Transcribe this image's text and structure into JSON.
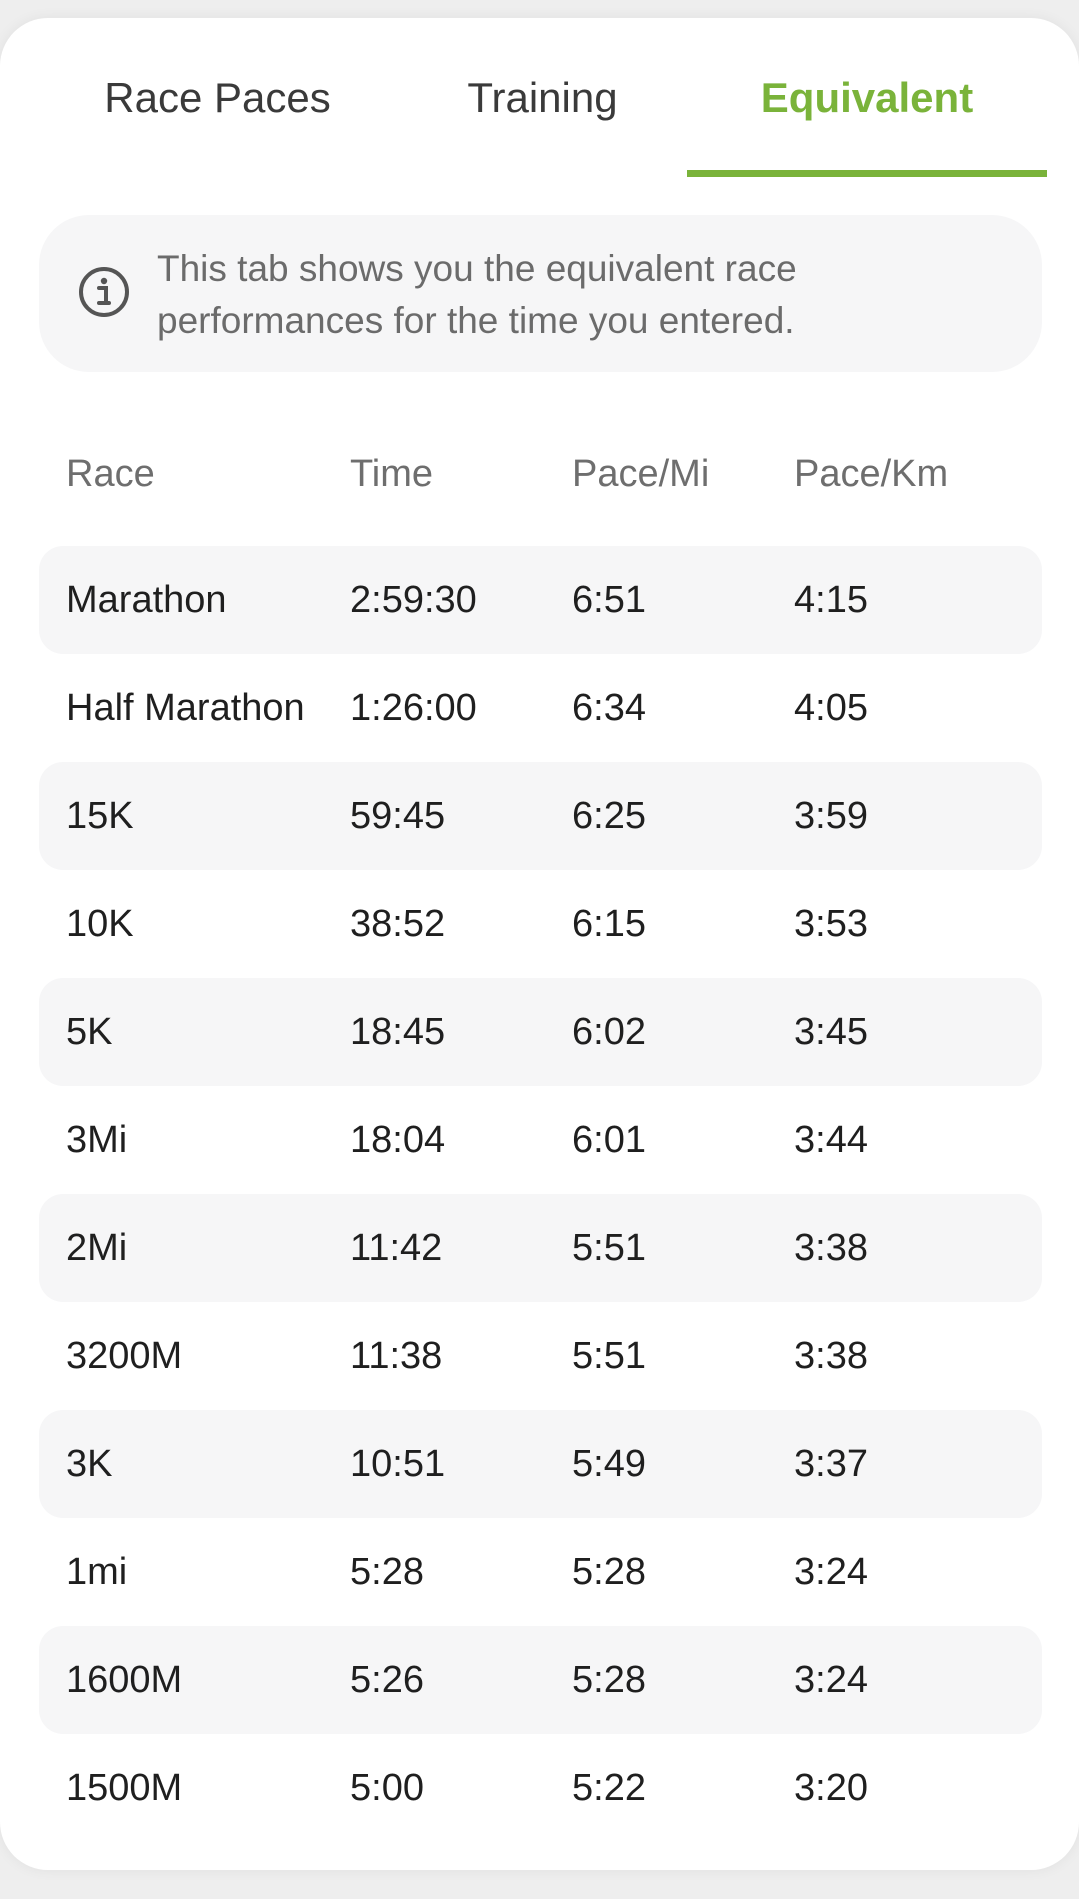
{
  "tabs": [
    {
      "label": "Race Paces",
      "active": false
    },
    {
      "label": "Training",
      "active": false
    },
    {
      "label": "Equivalent",
      "active": true
    }
  ],
  "colors": {
    "accent": "#7ab33a",
    "row_shade": "#f6f6f7",
    "text": "#1f1f1f",
    "muted": "#6e6e6e"
  },
  "info": {
    "icon": "info-icon",
    "line1": "This tab shows you the equivalent race",
    "line2": "performances for the time you entered."
  },
  "table": {
    "headers": [
      "Race",
      "Time",
      "Pace/Mi",
      "Pace/Km"
    ],
    "rows": [
      [
        "Marathon",
        "2:59:30",
        "6:51",
        "4:15"
      ],
      [
        "Half Marathon",
        "1:26:00",
        "6:34",
        "4:05"
      ],
      [
        "15K",
        "59:45",
        "6:25",
        "3:59"
      ],
      [
        "10K",
        "38:52",
        "6:15",
        "3:53"
      ],
      [
        "5K",
        "18:45",
        "6:02",
        "3:45"
      ],
      [
        "3Mi",
        "18:04",
        "6:01",
        "3:44"
      ],
      [
        "2Mi",
        "11:42",
        "5:51",
        "3:38"
      ],
      [
        "3200M",
        "11:38",
        "5:51",
        "3:38"
      ],
      [
        "3K",
        "10:51",
        "5:49",
        "3:37"
      ],
      [
        "1mi",
        "5:28",
        "5:28",
        "3:24"
      ],
      [
        "1600M",
        "5:26",
        "5:28",
        "3:24"
      ],
      [
        "1500M",
        "5:00",
        "5:22",
        "3:20"
      ]
    ]
  }
}
